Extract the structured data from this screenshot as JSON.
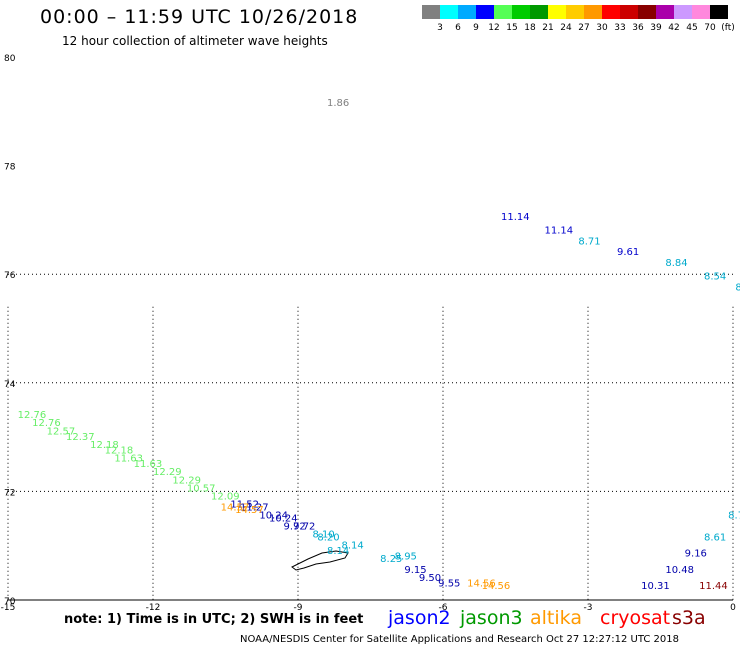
{
  "header": {
    "title": "00:00 – 11:59 UTC 10/26/2018",
    "subtitle": "12 hour collection of altimeter wave heights"
  },
  "color_scale": {
    "unit_label": "(ft)",
    "items": [
      {
        "label": "3",
        "color": "#808080"
      },
      {
        "label": "6",
        "color": "#00ffff"
      },
      {
        "label": "9",
        "color": "#00aaff"
      },
      {
        "label": "12",
        "color": "#0000ff"
      },
      {
        "label": "15",
        "color": "#55ff55"
      },
      {
        "label": "18",
        "color": "#00cc00"
      },
      {
        "label": "21",
        "color": "#009900"
      },
      {
        "label": "24",
        "color": "#ffff00"
      },
      {
        "label": "27",
        "color": "#ffcc00"
      },
      {
        "label": "30",
        "color": "#ff9900"
      },
      {
        "label": "33",
        "color": "#ff0000"
      },
      {
        "label": "36",
        "color": "#cc0000"
      },
      {
        "label": "39",
        "color": "#880000"
      },
      {
        "label": "42",
        "color": "#aa00aa"
      },
      {
        "label": "45",
        "color": "#cc99ff"
      },
      {
        "label": "70",
        "color": "#ff88dd"
      },
      {
        "label": "",
        "color": "#000000"
      }
    ]
  },
  "map": {
    "lon_range": [
      -15,
      0
    ],
    "lat_range": [
      70,
      80
    ],
    "x_ticks": [
      "-15",
      "-12",
      "-9",
      "-6",
      "-3",
      "0"
    ],
    "y_ticks": [
      "70",
      "72",
      "74",
      "76",
      "78",
      "80"
    ],
    "grid": "dotted"
  },
  "observations": [
    {
      "text": "1.86",
      "lon": -8.4,
      "lat": 79.1,
      "color": "#808080"
    },
    {
      "text": "11.14",
      "lon": -4.8,
      "lat": 77.0,
      "color": "#0000cc"
    },
    {
      "text": "11.14",
      "lon": -3.9,
      "lat": 76.75,
      "color": "#0000cc"
    },
    {
      "text": "8.71",
      "lon": -3.2,
      "lat": 76.55,
      "color": "#00aacc"
    },
    {
      "text": "9.61",
      "lon": -2.4,
      "lat": 76.35,
      "color": "#0000cc"
    },
    {
      "text": "8.84",
      "lon": -1.4,
      "lat": 76.15,
      "color": "#00aacc"
    },
    {
      "text": "8.54",
      "lon": -0.6,
      "lat": 75.9,
      "color": "#00aacc"
    },
    {
      "text": "8",
      "lon": 0.05,
      "lat": 75.7,
      "color": "#00aacc"
    },
    {
      "text": "12.76",
      "lon": -14.8,
      "lat": 73.35,
      "color": "#66ee66"
    },
    {
      "text": "12.76",
      "lon": -14.5,
      "lat": 73.2,
      "color": "#66ee66"
    },
    {
      "text": "12.57",
      "lon": -14.2,
      "lat": 73.05,
      "color": "#66ee66"
    },
    {
      "text": "12.37",
      "lon": -13.8,
      "lat": 72.95,
      "color": "#66ee66"
    },
    {
      "text": "12.18",
      "lon": -13.3,
      "lat": 72.8,
      "color": "#66ee66"
    },
    {
      "text": "12.18",
      "lon": -13.0,
      "lat": 72.7,
      "color": "#66ee66"
    },
    {
      "text": "11.63",
      "lon": -12.8,
      "lat": 72.55,
      "color": "#66ee66"
    },
    {
      "text": "11.63",
      "lon": -12.4,
      "lat": 72.45,
      "color": "#66ee66"
    },
    {
      "text": "12.29",
      "lon": -12.0,
      "lat": 72.3,
      "color": "#66ee66"
    },
    {
      "text": "12.29",
      "lon": -11.6,
      "lat": 72.15,
      "color": "#66ee66"
    },
    {
      "text": "10.57",
      "lon": -11.3,
      "lat": 72.0,
      "color": "#66ee66"
    },
    {
      "text": "12.09",
      "lon": -10.8,
      "lat": 71.85,
      "color": "#66ee66"
    },
    {
      "text": "11.52",
      "lon": -10.4,
      "lat": 71.7,
      "color": "#0000aa"
    },
    {
      "text": "11.27",
      "lon": -10.2,
      "lat": 71.65,
      "color": "#0000aa"
    },
    {
      "text": "10.24",
      "lon": -9.8,
      "lat": 71.5,
      "color": "#0000aa"
    },
    {
      "text": "10.24",
      "lon": -9.6,
      "lat": 71.45,
      "color": "#0000aa"
    },
    {
      "text": "9.72",
      "lon": -9.3,
      "lat": 71.3,
      "color": "#0000aa"
    },
    {
      "text": "9.72",
      "lon": -9.1,
      "lat": 71.3,
      "color": "#0000aa"
    },
    {
      "text": "8.10",
      "lon": -8.7,
      "lat": 71.15,
      "color": "#00aacc"
    },
    {
      "text": "8.20",
      "lon": -8.6,
      "lat": 71.1,
      "color": "#00aacc"
    },
    {
      "text": "8.14",
      "lon": -8.1,
      "lat": 70.95,
      "color": "#00aacc"
    },
    {
      "text": "8.14",
      "lon": -8.4,
      "lat": 70.85,
      "color": "#00aacc"
    },
    {
      "text": "8.25",
      "lon": -7.3,
      "lat": 70.7,
      "color": "#00aacc"
    },
    {
      "text": "8.95",
      "lon": -7.0,
      "lat": 70.75,
      "color": "#00aacc"
    },
    {
      "text": "9.15",
      "lon": -6.8,
      "lat": 70.5,
      "color": "#0000aa"
    },
    {
      "text": "9.50",
      "lon": -6.5,
      "lat": 70.35,
      "color": "#0000aa"
    },
    {
      "text": "9.55",
      "lon": -6.1,
      "lat": 70.25,
      "color": "#0000aa"
    },
    {
      "text": "14.57",
      "lon": -10.6,
      "lat": 71.65,
      "color": "#ff9900"
    },
    {
      "text": "14.57",
      "lon": -10.3,
      "lat": 71.6,
      "color": "#ff9900"
    },
    {
      "text": "14.56",
      "lon": -5.5,
      "lat": 70.25,
      "color": "#ff9900"
    },
    {
      "text": "14.56",
      "lon": -5.2,
      "lat": 70.2,
      "color": "#ff9900"
    },
    {
      "text": "10.31",
      "lon": -1.9,
      "lat": 70.2,
      "color": "#0000aa"
    },
    {
      "text": "10.48",
      "lon": -1.4,
      "lat": 70.5,
      "color": "#0000aa"
    },
    {
      "text": "9.16",
      "lon": -1.0,
      "lat": 70.8,
      "color": "#0000aa"
    },
    {
      "text": "8.61",
      "lon": -0.6,
      "lat": 71.1,
      "color": "#00aacc"
    },
    {
      "text": "8.7",
      "lon": -0.1,
      "lat": 71.5,
      "color": "#00aacc"
    },
    {
      "text": "11.44",
      "lon": -0.7,
      "lat": 70.2,
      "color": "#880000"
    }
  ],
  "note": {
    "text": "note:  1) Time is in UTC;  2) SWH is in feet"
  },
  "satellites": [
    {
      "name": "jason2",
      "color": "#0000ff"
    },
    {
      "name": "jason3",
      "color": "#009900"
    },
    {
      "name": "altika",
      "color": "#ff9900"
    },
    {
      "name": "cryosat",
      "color": "#ff0000"
    },
    {
      "name": "s3a",
      "color": "#880000"
    }
  ],
  "footer": {
    "text": "NOAA/NESDIS Center for Satellite Applications and Research     Oct 27 12:27:12 UTC 2018"
  }
}
